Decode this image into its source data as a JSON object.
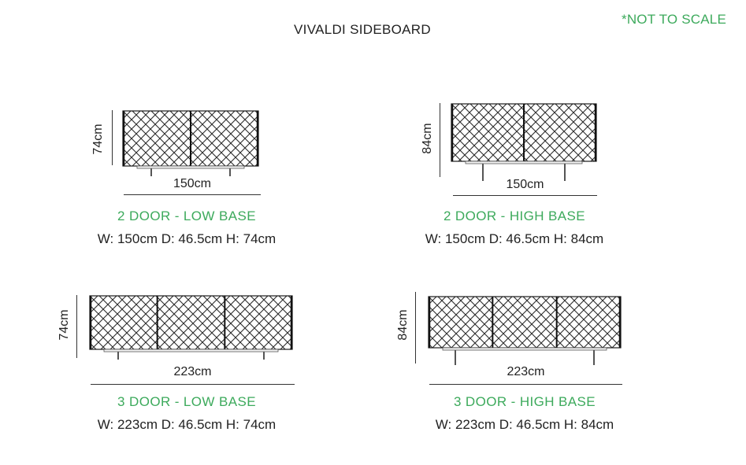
{
  "title": "VIVALDI SIDEBOARD",
  "note": "*NOT TO SCALE",
  "accent_color": "#3daa5c",
  "items": [
    {
      "name": "2 DOOR - LOW BASE",
      "spec": "W: 150cm D: 46.5cm H: 74cm",
      "width_label": "150cm",
      "height_label": "74cm",
      "doors": 2,
      "base": "low"
    },
    {
      "name": "2 DOOR - HIGH BASE",
      "spec": "W: 150cm D: 46.5cm H: 84cm",
      "width_label": "150cm",
      "height_label": "84cm",
      "doors": 2,
      "base": "high"
    },
    {
      "name": "3 DOOR - LOW BASE",
      "spec": "W: 223cm D: 46.5cm H: 74cm",
      "width_label": "223cm",
      "height_label": "74cm",
      "doors": 3,
      "base": "low"
    },
    {
      "name": "3 DOOR - HIGH BASE",
      "spec": "W: 223cm D: 46.5cm H: 84cm",
      "width_label": "223cm",
      "height_label": "84cm",
      "doors": 3,
      "base": "high"
    }
  ]
}
